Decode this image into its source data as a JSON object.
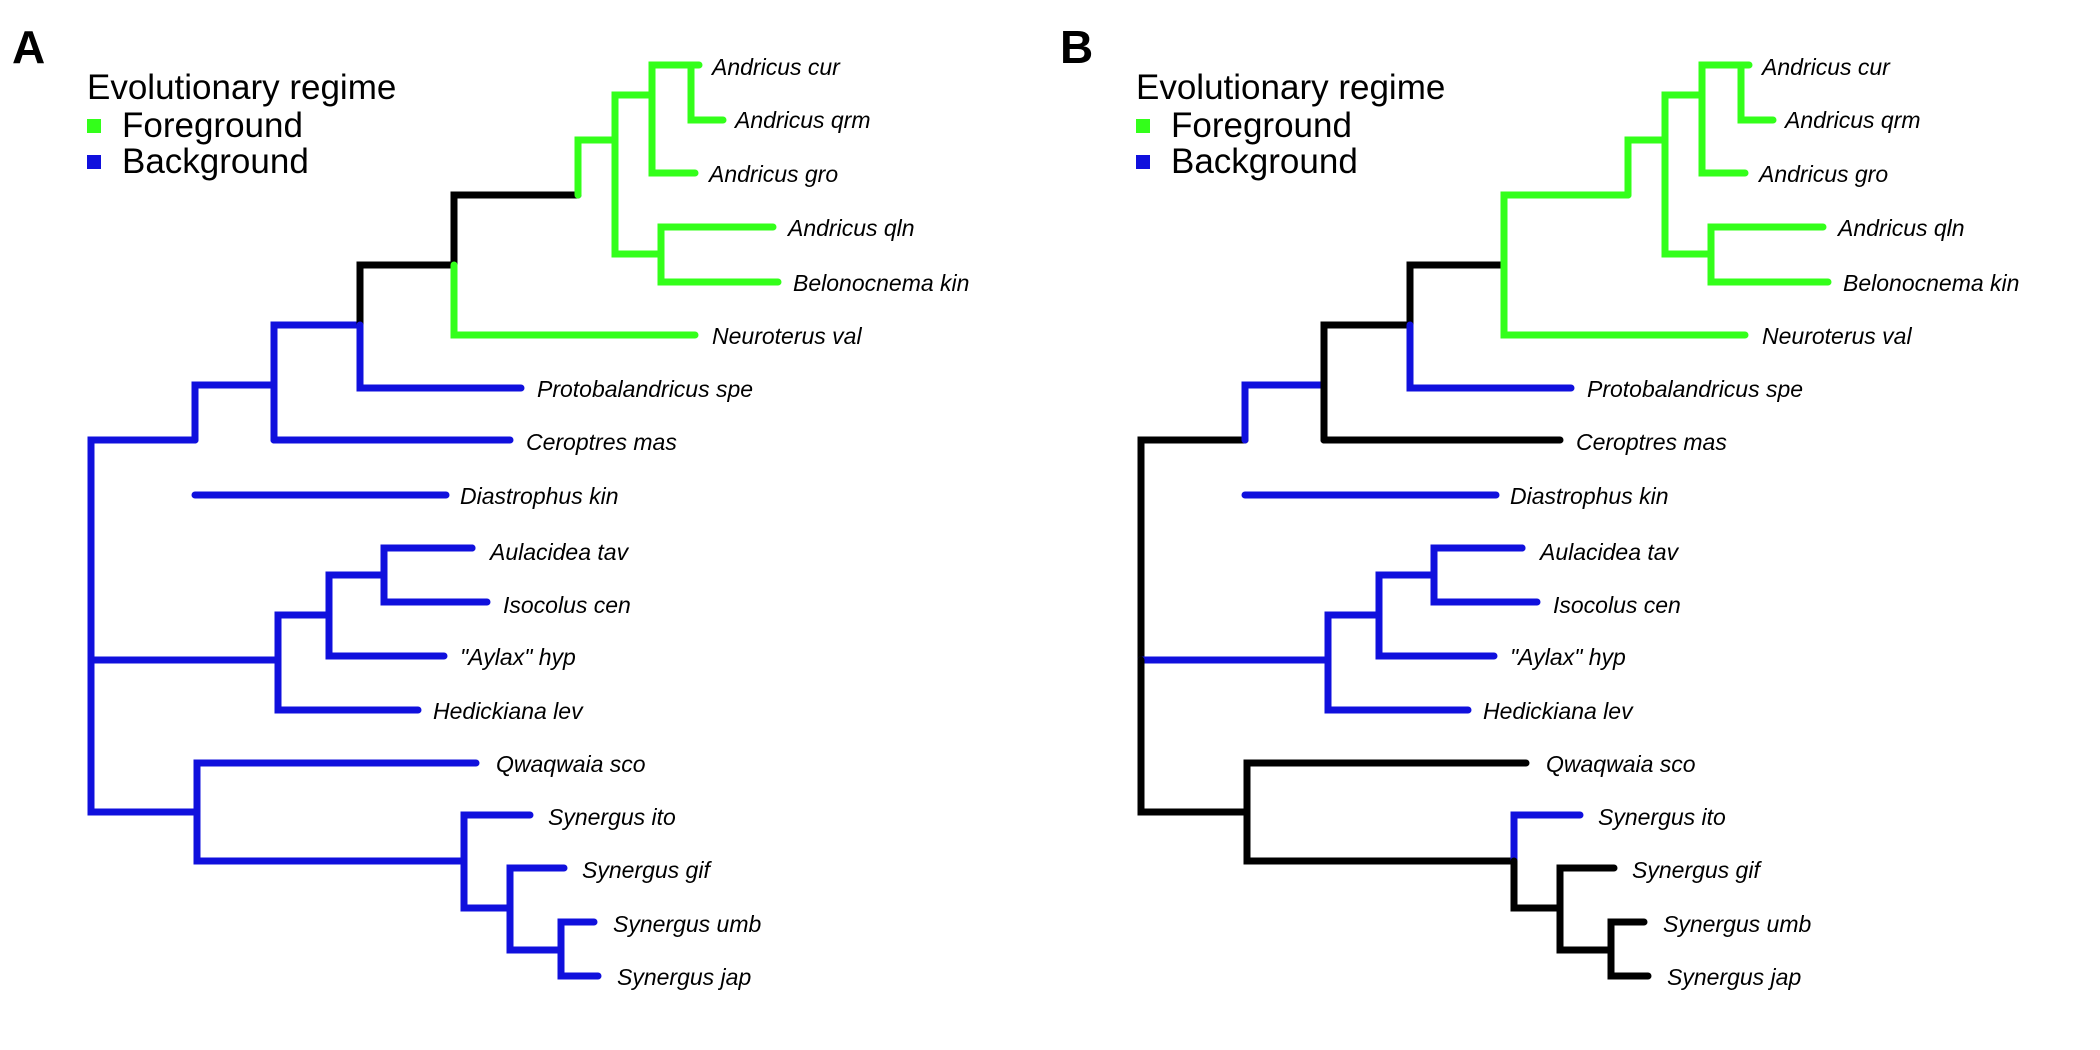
{
  "colors": {
    "foreground": "#33ff1a",
    "background": "#1010dd",
    "unassigned": "#000000"
  },
  "legend": {
    "title": "Evolutionary regime",
    "foreground_label": "Foreground",
    "background_label": "Background"
  },
  "tips": [
    "Andricus cur",
    "Andricus qrm",
    "Andricus gro",
    "Andricus qln",
    "Belonocnema kin",
    "Neuroterus val",
    "Protobalandricus spe",
    "Ceroptres mas",
    "Diastrophus kin",
    "Aulacidea tav",
    "Isocolus cen",
    "\"Aylax\" hyp",
    "Hedickiana lev",
    "Qwaqwaia sco",
    "Synergus ito",
    "Synergus gif",
    "Synergus umb",
    "Synergus jap"
  ],
  "panels": [
    {
      "letter": "A",
      "branch_regimes": {
        "root-to-upper-clade": "background",
        "upper-clade-to-diastrophus-split": "background",
        "diastrophus-kin-tip": "background",
        "to-ceroptres-split": "background",
        "ceroptres-mas-tip": "background",
        "to-protobalandricus-split": "unassigned",
        "protobalandricus-spe-tip": "background",
        "to-oak-gall-clade": "unassigned",
        "to-andricus-clade": "foreground",
        "neuroterus-val-tip": "foreground",
        "to-andricus-main": "foreground",
        "to-belonocnema-split": "foreground",
        "andricus-qln-tip": "foreground",
        "belonocnema-kin-tip": "foreground",
        "to-andricus-cur-split": "foreground",
        "andricus-gro-tip": "foreground",
        "andricus-cur-tip": "foreground",
        "andricus-qrm-tip": "foreground",
        "root-to-middle-clade": "background",
        "to-hedickiana-split": "background",
        "hedickiana-lev-tip": "background",
        "to-aylax-split": "background",
        "aylax-hyp-tip": "background",
        "to-aulacidea-split": "background",
        "aulacidea-tav-tip": "background",
        "isocolus-cen-tip": "background",
        "root-to-lower-clade": "background",
        "qwaqwaia-sco-tip": "background",
        "to-synergus-clade": "background",
        "synergus-ito-tip": "background",
        "to-synergus-gif-split": "background",
        "synergus-gif-tip": "background",
        "to-synergus-umb-split": "background",
        "synergus-umb-tip": "background",
        "synergus-jap-tip": "background"
      }
    },
    {
      "letter": "B",
      "branch_regimes": {
        "root-to-upper-clade": "unassigned",
        "upper-clade-to-diastrophus-split": "background",
        "diastrophus-kin-tip": "background",
        "to-ceroptres-split": "unassigned",
        "ceroptres-mas-tip": "unassigned",
        "to-protobalandricus-split": "unassigned",
        "protobalandricus-spe-tip": "background",
        "to-oak-gall-clade": "foreground",
        "to-andricus-clade": "foreground",
        "neuroterus-val-tip": "foreground",
        "to-andricus-main": "foreground",
        "to-belonocnema-split": "foreground",
        "andricus-qln-tip": "foreground",
        "belonocnema-kin-tip": "foreground",
        "to-andricus-cur-split": "foreground",
        "andricus-gro-tip": "foreground",
        "andricus-cur-tip": "foreground",
        "andricus-qrm-tip": "foreground",
        "root-to-middle-clade": "background",
        "to-hedickiana-split": "background",
        "hedickiana-lev-tip": "background",
        "to-aylax-split": "background",
        "aylax-hyp-tip": "background",
        "to-aulacidea-split": "background",
        "aulacidea-tav-tip": "background",
        "isocolus-cen-tip": "background",
        "root-to-lower-clade": "unassigned",
        "qwaqwaia-sco-tip": "unassigned",
        "to-synergus-clade": "unassigned",
        "synergus-ito-tip": "background",
        "to-synergus-gif-split": "unassigned",
        "synergus-gif-tip": "unassigned",
        "to-synergus-umb-split": "unassigned",
        "synergus-umb-tip": "unassigned",
        "synergus-jap-tip": "unassigned"
      }
    }
  ]
}
